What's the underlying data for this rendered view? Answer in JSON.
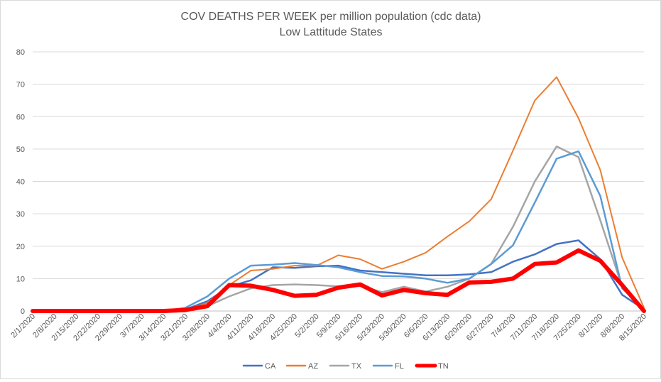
{
  "chart_data": {
    "type": "line",
    "title": "COV DEATHS PER WEEK per million population (cdc data)",
    "subtitle": "Low Lattitude States",
    "xlabel": "",
    "ylabel": "",
    "ylim": [
      0,
      80
    ],
    "yticks": [
      "0",
      "10",
      "20",
      "30",
      "40",
      "50",
      "60",
      "70",
      "80"
    ],
    "grid": true,
    "legend_position": "bottom",
    "categories": [
      "2/1/2020",
      "2/8/2020",
      "2/15/2020",
      "2/22/2020",
      "2/29/2020",
      "3/7/2020",
      "3/14/2020",
      "3/21/2020",
      "3/28/2020",
      "4/4/2020",
      "4/11/2020",
      "4/18/2020",
      "4/25/2020",
      "5/2/2020",
      "5/9/2020",
      "5/16/2020",
      "5/23/2020",
      "5/30/2020",
      "6/6/2020",
      "6/13/2020",
      "6/20/2020",
      "6/27/2020",
      "7/4/2020",
      "7/11/2020",
      "7/18/2020",
      "7/25/2020",
      "8/1/2020",
      "8/8/2020",
      "8/15/2020"
    ],
    "series": [
      {
        "name": "CA",
        "color": "#4472c4",
        "width": 2.5,
        "values": [
          0,
          0,
          0,
          0,
          0,
          0,
          0,
          0.5,
          3,
          7.5,
          9.5,
          13.5,
          13.3,
          13.8,
          14,
          12.5,
          12,
          11.5,
          11,
          11,
          11.3,
          12,
          15.2,
          17.5,
          20.7,
          21.8,
          16,
          5,
          0.5
        ]
      },
      {
        "name": "AZ",
        "color": "#ed7d31",
        "width": 2,
        "values": [
          0,
          0,
          0,
          0,
          0,
          0,
          0,
          0.2,
          2.5,
          8,
          12.5,
          13,
          14,
          14,
          17.2,
          16,
          13,
          15.2,
          18,
          23,
          27.7,
          34.5,
          49.5,
          65,
          72.2,
          59.5,
          43.5,
          16.5,
          1
        ]
      },
      {
        "name": "TX",
        "color": "#a5a5a5",
        "width": 2.5,
        "values": [
          0,
          0,
          0,
          0,
          0,
          0,
          0,
          0.2,
          1.5,
          4.5,
          7,
          8,
          8.2,
          8,
          7.6,
          7.8,
          5.8,
          7.5,
          6,
          7.5,
          10,
          14.5,
          26,
          40,
          50.8,
          47.5,
          28,
          7.5,
          0.5
        ]
      },
      {
        "name": "FL",
        "color": "#5b9bd5",
        "width": 2.5,
        "values": [
          0,
          0,
          0,
          0,
          0,
          0,
          0,
          1,
          4.5,
          10,
          14,
          14.3,
          14.8,
          14.2,
          13.5,
          12,
          10.8,
          10.7,
          10,
          8.7,
          10,
          14.5,
          20.3,
          33.5,
          47,
          49.3,
          35.5,
          7,
          0.5
        ]
      },
      {
        "name": "TN",
        "color": "#ff0000",
        "width": 6,
        "values": [
          0,
          0,
          0,
          0,
          0,
          0,
          0,
          0.3,
          1.5,
          8,
          7.8,
          6.5,
          4.7,
          5,
          7.2,
          8.2,
          4.8,
          6.5,
          5.5,
          5,
          8.8,
          9,
          10,
          14.5,
          15,
          18.7,
          15.5,
          8,
          0
        ]
      }
    ]
  }
}
